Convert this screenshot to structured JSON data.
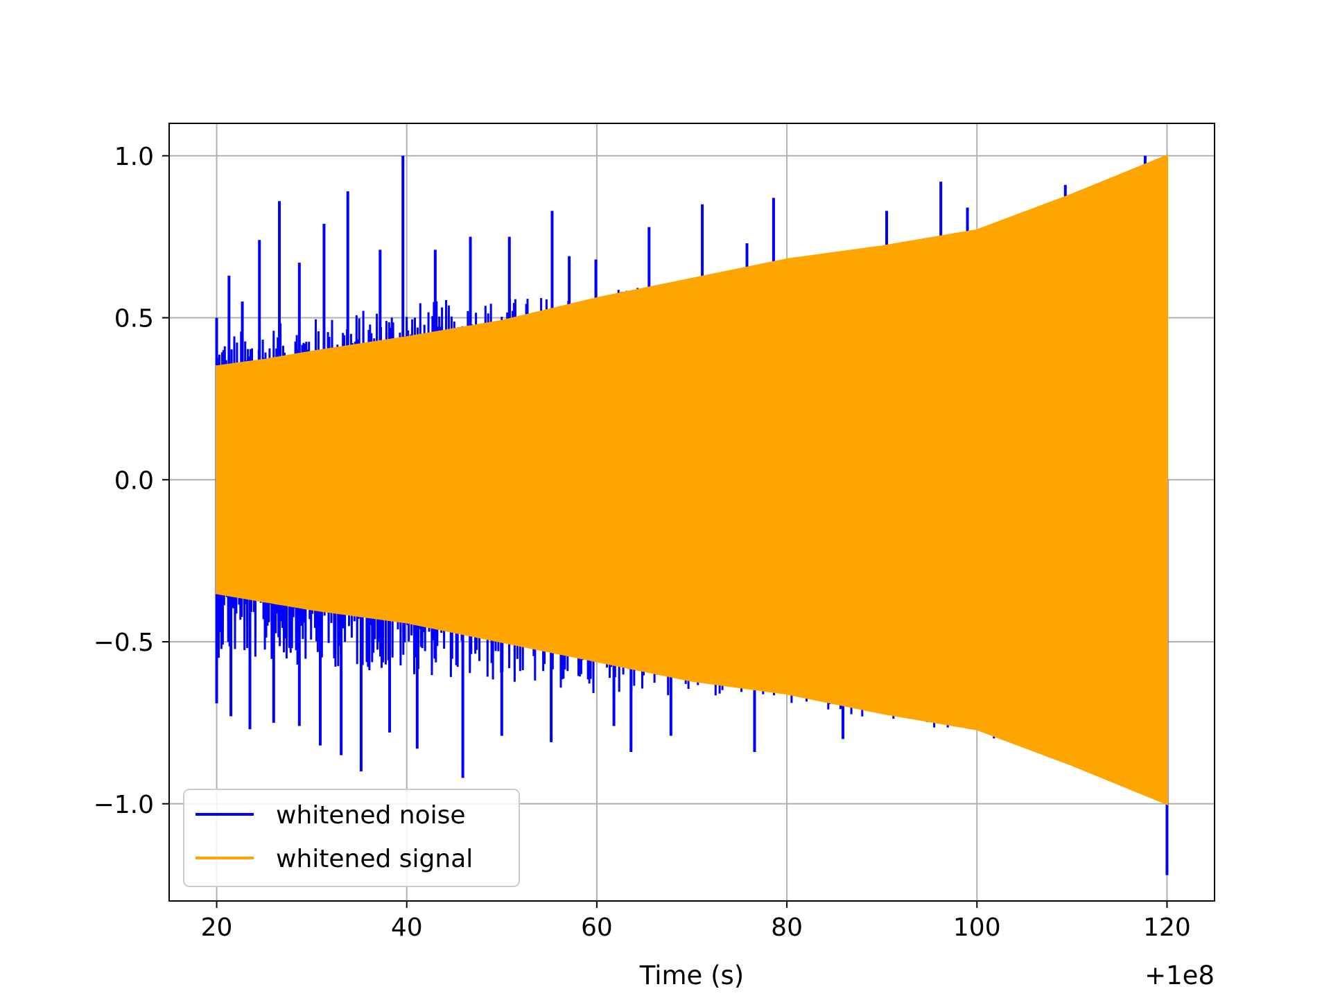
{
  "chart_data": {
    "type": "line",
    "title": "",
    "xlabel": "Time (s)",
    "ylabel": "",
    "x_offset_label": "+1e8",
    "xlim": [
      15,
      125
    ],
    "ylim": [
      -1.3,
      1.1
    ],
    "xticks": [
      20,
      40,
      60,
      80,
      100,
      120
    ],
    "xtick_labels": [
      "20",
      "40",
      "60",
      "80",
      "100",
      "120"
    ],
    "yticks": [
      1.0,
      0.5,
      0.0,
      -0.5,
      -1.0
    ],
    "ytick_labels": [
      "1.0",
      "0.5",
      "0.0",
      "−0.5",
      "−1.0"
    ],
    "grid": true,
    "legend_position": "lower-left",
    "series": [
      {
        "name": "whitened noise",
        "color": "#0000ff",
        "t_range": [
          20,
          120
        ],
        "upper_envelope": [
          [
            20,
            0.45
          ],
          [
            40,
            0.55
          ],
          [
            60,
            0.58
          ],
          [
            80,
            0.66
          ],
          [
            100,
            0.76
          ],
          [
            120,
            0.98
          ]
        ],
        "lower_envelope": [
          [
            20,
            -0.55
          ],
          [
            40,
            -0.6
          ],
          [
            60,
            -0.66
          ],
          [
            80,
            -0.7
          ],
          [
            100,
            -0.8
          ],
          [
            120,
            -0.95
          ]
        ],
        "spikes": [
          [
            20,
            0.5
          ],
          [
            21.3,
            0.63
          ],
          [
            22.7,
            0.55
          ],
          [
            24.5,
            0.74
          ],
          [
            26.6,
            0.86
          ],
          [
            28.7,
            0.67
          ],
          [
            31.3,
            0.79
          ],
          [
            33.8,
            0.89
          ],
          [
            37.2,
            0.71
          ],
          [
            39.6,
            1.0
          ],
          [
            43.0,
            0.71
          ],
          [
            46.7,
            0.75
          ],
          [
            50.8,
            0.75
          ],
          [
            55.3,
            0.83
          ],
          [
            57.1,
            0.69
          ],
          [
            59.9,
            0.68
          ],
          [
            65.5,
            0.78
          ],
          [
            71.1,
            0.85
          ],
          [
            75.8,
            0.73
          ],
          [
            78.6,
            0.87
          ],
          [
            90.5,
            0.83
          ],
          [
            96.2,
            0.92
          ],
          [
            99.0,
            0.84
          ],
          [
            109.3,
            0.91
          ],
          [
            117.7,
            1.0
          ],
          [
            20,
            -0.69
          ],
          [
            21.5,
            -0.73
          ],
          [
            23.5,
            -0.77
          ],
          [
            26.0,
            -0.75
          ],
          [
            28.7,
            -0.76
          ],
          [
            30.9,
            -0.82
          ],
          [
            33.1,
            -0.85
          ],
          [
            35.2,
            -0.9
          ],
          [
            38.2,
            -0.78
          ],
          [
            41.1,
            -0.83
          ],
          [
            45.9,
            -0.92
          ],
          [
            50.0,
            -0.79
          ],
          [
            55.2,
            -0.81
          ],
          [
            61.8,
            -0.76
          ],
          [
            63.6,
            -0.84
          ],
          [
            67.8,
            -0.79
          ],
          [
            76.6,
            -0.84
          ],
          [
            85.9,
            -0.8
          ],
          [
            120,
            -1.22
          ]
        ]
      },
      {
        "name": "whitened signal",
        "color": "#ffa500",
        "t_range": [
          20,
          120
        ],
        "upper_envelope": [
          [
            20,
            0.35
          ],
          [
            25,
            0.37
          ],
          [
            30,
            0.395
          ],
          [
            40,
            0.44
          ],
          [
            50,
            0.49
          ],
          [
            60,
            0.56
          ],
          [
            70,
            0.62
          ],
          [
            80,
            0.68
          ],
          [
            90,
            0.72
          ],
          [
            100,
            0.77
          ],
          [
            110,
            0.88
          ],
          [
            120,
            1.0
          ]
        ],
        "lower_envelope": [
          [
            20,
            -0.35
          ],
          [
            25,
            -0.375
          ],
          [
            30,
            -0.4
          ],
          [
            40,
            -0.44
          ],
          [
            50,
            -0.5
          ],
          [
            60,
            -0.56
          ],
          [
            70,
            -0.62
          ],
          [
            80,
            -0.66
          ],
          [
            90,
            -0.72
          ],
          [
            100,
            -0.77
          ],
          [
            110,
            -0.88
          ],
          [
            120,
            -1.0
          ]
        ]
      }
    ]
  }
}
